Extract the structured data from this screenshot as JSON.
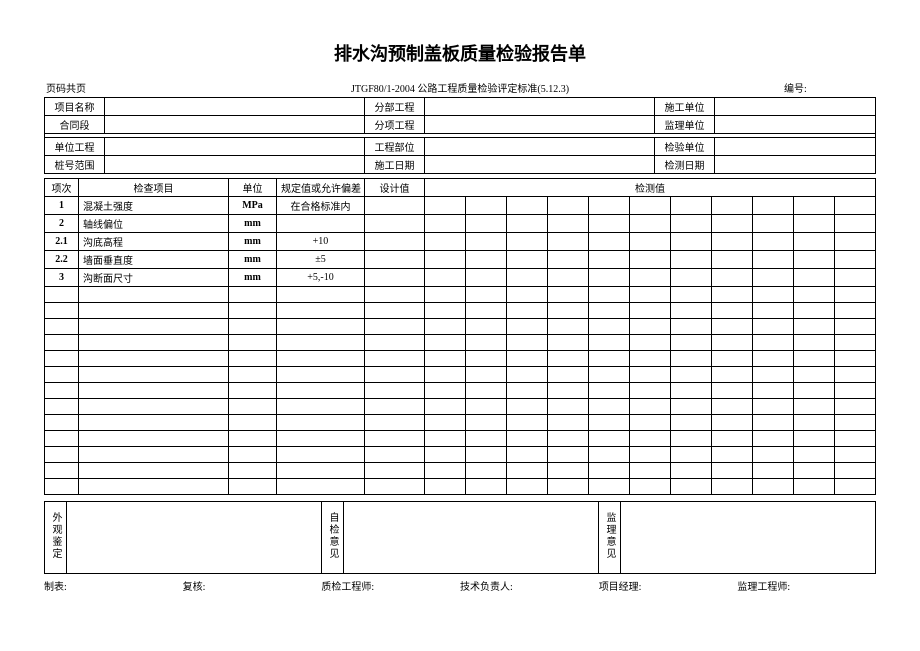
{
  "title": "排水沟预制盖板质量检验报告单",
  "meta": {
    "page": "页码共页",
    "standard": "JTGF80/1-2004 公路工程质量检验评定标准(5.12.3)",
    "number_label": "编号:"
  },
  "info": {
    "r1c1": "项目名称",
    "r1c2": "分部工程",
    "r1c3": "施工单位",
    "r2c1": "合同段",
    "r2c2": "分项工程",
    "r2c3": "监理单位",
    "r3c1": "单位工程",
    "r3c2": "工程部位",
    "r3c3": "检验单位",
    "r4c1": "桩号范围",
    "r4c2": "施工日期",
    "r4c3": "检测日期"
  },
  "headers": {
    "seq": "项次",
    "item": "检查项目",
    "unit": "单位",
    "spec": "规定值或允许偏差",
    "design": "设计值",
    "measure": "检测值"
  },
  "rows": [
    {
      "seq": "1",
      "item": "混凝土强度",
      "unit": "MPa",
      "spec": "在合格标准内"
    },
    {
      "seq": "2",
      "item": "轴线偏位",
      "unit": "mm",
      "spec": ""
    },
    {
      "seq": "2.1",
      "item": "沟底高程",
      "unit": "mm",
      "spec": "+10"
    },
    {
      "seq": "2.2",
      "item": "墙面垂直度",
      "unit": "mm",
      "spec": "±5"
    },
    {
      "seq": "3",
      "item": "沟断面尺寸",
      "unit": "mm",
      "spec": "+5,-10"
    }
  ],
  "footer_labels": {
    "appearance": "外观鉴定",
    "self_check": "自检意见",
    "supervisor": "监理意见"
  },
  "signatures": {
    "s1": "制表:",
    "s2": "复核:",
    "s3": "质检工程师:",
    "s4": "技术负责人:",
    "s5": "项目经理:",
    "s6": "监理工程师:"
  }
}
